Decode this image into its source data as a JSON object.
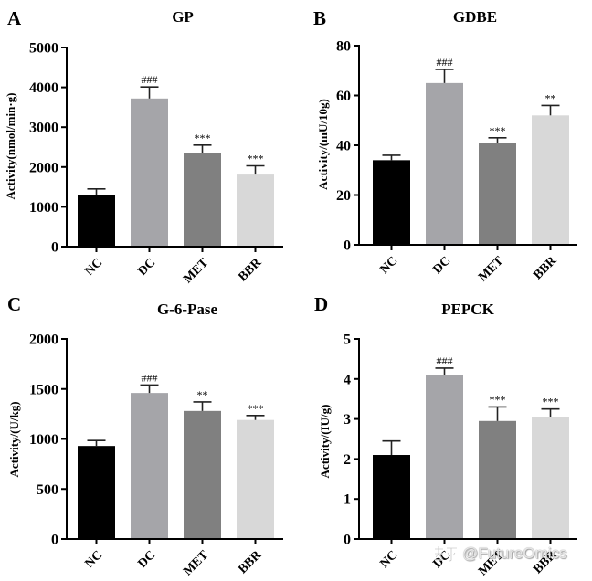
{
  "chart_data": [
    {
      "panel": "A",
      "type": "bar",
      "title": "GP",
      "xlabel": "",
      "ylabel": "Activity(nmol/min·g)",
      "categories": [
        "NC",
        "DC",
        "MET",
        "BBR"
      ],
      "values": [
        1300,
        3720,
        2340,
        1810
      ],
      "errors": [
        150,
        290,
        210,
        220
      ],
      "significance": [
        "",
        "###",
        "***",
        "***"
      ],
      "ylim": [
        0,
        5000
      ],
      "yticks": [
        0,
        1000,
        2000,
        3000,
        4000,
        5000
      ],
      "colors": [
        "#000000",
        "#a5a5a9",
        "#808080",
        "#d8d8d8"
      ]
    },
    {
      "panel": "B",
      "type": "bar",
      "title": "GDBE",
      "xlabel": "",
      "ylabel": "Activity/(mU/10g)",
      "categories": [
        "NC",
        "DC",
        "MET",
        "BBR"
      ],
      "values": [
        34,
        65,
        41,
        52
      ],
      "errors": [
        2,
        5.5,
        2,
        4
      ],
      "significance": [
        "",
        "###",
        "***",
        "**"
      ],
      "ylim": [
        0,
        80
      ],
      "yticks": [
        0,
        20,
        40,
        60,
        80
      ],
      "colors": [
        "#000000",
        "#a5a5a9",
        "#808080",
        "#d8d8d8"
      ]
    },
    {
      "panel": "C",
      "type": "bar",
      "title": "G-6-Pase",
      "xlabel": "",
      "ylabel": "Activity/(U/kg)",
      "categories": [
        "NC",
        "DC",
        "MET",
        "BBR"
      ],
      "values": [
        930,
        1460,
        1280,
        1190
      ],
      "errors": [
        55,
        80,
        90,
        45
      ],
      "significance": [
        "",
        "###",
        "**",
        "***"
      ],
      "ylim": [
        0,
        2000
      ],
      "yticks": [
        0,
        500,
        1000,
        1500,
        2000
      ],
      "colors": [
        "#000000",
        "#a5a5a9",
        "#808080",
        "#d8d8d8"
      ]
    },
    {
      "panel": "D",
      "type": "bar",
      "title": "PEPCK",
      "xlabel": "",
      "ylabel": "Activity/(IU/g)",
      "categories": [
        "NC",
        "DC",
        "MET",
        "BBR"
      ],
      "values": [
        2.1,
        4.1,
        2.95,
        3.05
      ],
      "errors": [
        0.35,
        0.17,
        0.35,
        0.2
      ],
      "significance": [
        "",
        "###",
        "***",
        "***"
      ],
      "ylim": [
        0,
        5
      ],
      "yticks": [
        0,
        1,
        2,
        3,
        4,
        5
      ],
      "colors": [
        "#000000",
        "#a5a5a9",
        "#808080",
        "#d8d8d8"
      ]
    }
  ],
  "watermark": {
    "site": "知乎",
    "handle": "@FutureOmics"
  }
}
